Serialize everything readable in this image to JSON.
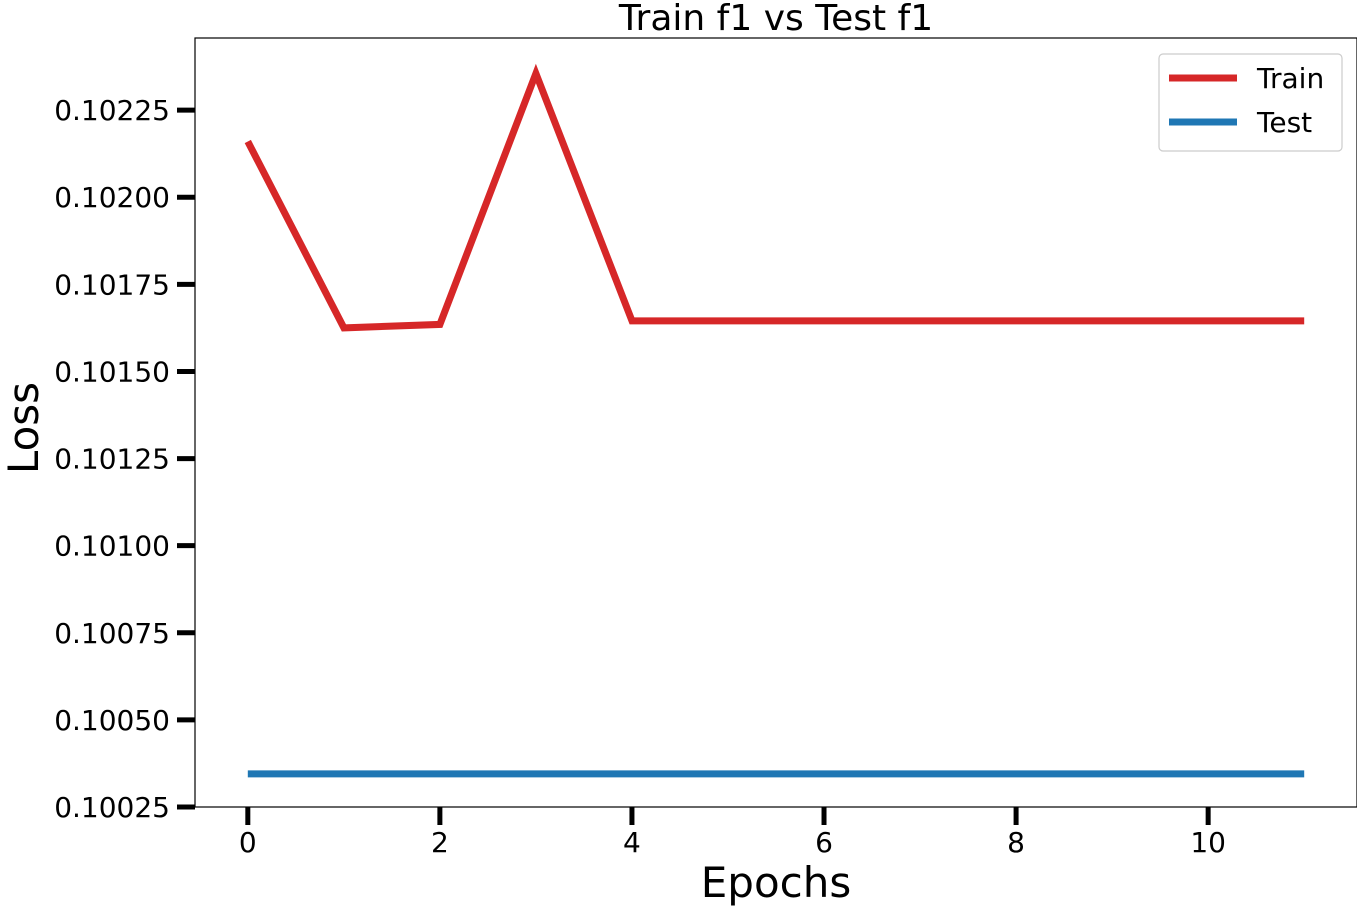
{
  "chart_data": {
    "type": "line",
    "title": "Train f1 vs Test f1",
    "xlabel": "Epochs",
    "ylabel": "Loss",
    "x": [
      0,
      1,
      2,
      3,
      4,
      5,
      6,
      7,
      8,
      9,
      10,
      11
    ],
    "series": [
      {
        "name": "Train",
        "color": "#d62728",
        "values": [
          0.10216,
          0.101625,
          0.101635,
          0.102355,
          0.101645,
          0.101645,
          0.101645,
          0.101645,
          0.101645,
          0.101645,
          0.101645,
          0.101645
        ]
      },
      {
        "name": "Test",
        "color": "#1f77b4",
        "values": [
          0.100345,
          0.100345,
          0.100345,
          0.100345,
          0.100345,
          0.100345,
          0.100345,
          0.100345,
          0.100345,
          0.100345,
          0.100345,
          0.100345
        ]
      }
    ],
    "xticks": [
      0,
      2,
      4,
      6,
      8,
      10
    ],
    "xtick_labels": [
      "0",
      "2",
      "4",
      "6",
      "8",
      "10"
    ],
    "yticks": [
      0.10025,
      0.1005,
      0.10075,
      0.101,
      0.10125,
      0.1015,
      0.10175,
      0.102,
      0.10225
    ],
    "ytick_labels": [
      "0.10025",
      "0.10050",
      "0.10075",
      "0.10100",
      "0.10125",
      "0.10150",
      "0.10175",
      "0.10200",
      "0.10225"
    ],
    "xlim": [
      -0.55,
      11.55
    ],
    "ylim": [
      0.10025,
      0.102457
    ],
    "grid": false,
    "legend_position": "top-right"
  }
}
